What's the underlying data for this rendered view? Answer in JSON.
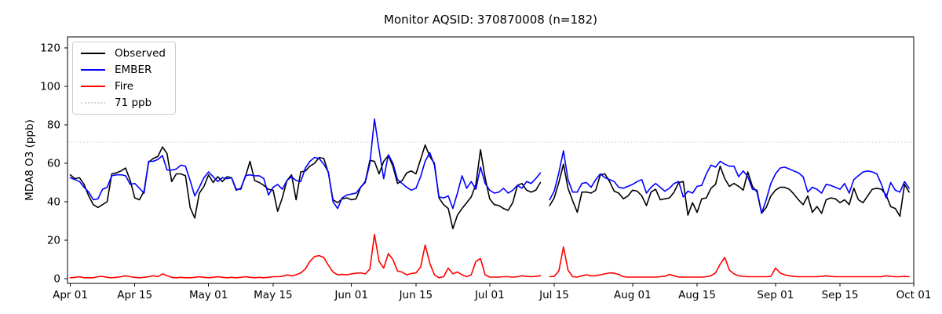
{
  "chart_data": {
    "type": "line",
    "title": "Monitor AQSID: 370870008 (n=182)",
    "ylabel": "MDA8 O3 (ppb)",
    "xlabel": "",
    "ylim": [
      -2.45,
      125.7
    ],
    "yticks": [
      0,
      20,
      40,
      60,
      80,
      100,
      120
    ],
    "x_axis": "daily values, day index 0 = Apr 01",
    "n_points": 183,
    "missing_day_index": 103,
    "grid": false,
    "legend_position": "upper-left",
    "xticks": [
      {
        "index": 0,
        "label": "Apr 01"
      },
      {
        "index": 14,
        "label": "Apr 15"
      },
      {
        "index": 30,
        "label": "May 01"
      },
      {
        "index": 44,
        "label": "May 15"
      },
      {
        "index": 61,
        "label": "Jun 01"
      },
      {
        "index": 75,
        "label": "Jun 15"
      },
      {
        "index": 91,
        "label": "Jul 01"
      },
      {
        "index": 105,
        "label": "Jul 15"
      },
      {
        "index": 122,
        "label": "Aug 01"
      },
      {
        "index": 136,
        "label": "Aug 15"
      },
      {
        "index": 153,
        "label": "Sep 01"
      },
      {
        "index": 167,
        "label": "Sep 15"
      },
      {
        "index": 183,
        "label": "Oct 01"
      }
    ],
    "threshold": {
      "value": 71,
      "label": "71 ppb",
      "color": "#d3d3d3",
      "style": "dotted"
    },
    "series": [
      {
        "name": "Observed",
        "color": "#000000",
        "style": "solid",
        "values": [
          54,
          52,
          52.5,
          49,
          43,
          38.5,
          37,
          38.5,
          40,
          54.5,
          55,
          56,
          57.5,
          51,
          42,
          41,
          45.5,
          60.5,
          62.5,
          63.5,
          68.5,
          65,
          50.5,
          54.5,
          54.5,
          53.5,
          37,
          31.5,
          44.5,
          48,
          54,
          50,
          53,
          50.5,
          53,
          52.5,
          46,
          47,
          53,
          61,
          51,
          50,
          48.5,
          46.5,
          46,
          35,
          42,
          51,
          54,
          41,
          55.5,
          56,
          58.5,
          60,
          63,
          62.5,
          55,
          41,
          39.5,
          41.5,
          42,
          41,
          41.5,
          47.5,
          50.5,
          61.5,
          61,
          54.5,
          61,
          64,
          58.5,
          49.5,
          51,
          55,
          56,
          54.5,
          62,
          69.5,
          63.5,
          60,
          42,
          38.5,
          36.5,
          26,
          33,
          36.5,
          39.5,
          42.5,
          49,
          67,
          52.5,
          41.5,
          38.5,
          38,
          36.5,
          35.5,
          39.5,
          48.5,
          49.5,
          46,
          45,
          46,
          50,
          null,
          38,
          42,
          50,
          59.5,
          47,
          40.5,
          34.5,
          45,
          45,
          44.5,
          46,
          54,
          54.5,
          50.5,
          45.5,
          44.5,
          41.5,
          43,
          46,
          45.5,
          43,
          38,
          45,
          46.5,
          41,
          41.5,
          42,
          45,
          50,
          50.5,
          33,
          39.5,
          34.5,
          41.5,
          42,
          47,
          49,
          58.5,
          52,
          48,
          49.5,
          48,
          46,
          55.5,
          48,
          45,
          34,
          37,
          43,
          46,
          47.5,
          47.5,
          46.5,
          44,
          41,
          38.5,
          43,
          34.5,
          37.5,
          34,
          41,
          42,
          41.5,
          39.5,
          41,
          38.5,
          47,
          41,
          39.5,
          43,
          46.5,
          47,
          46.5,
          43.5,
          37.5,
          36.5,
          32.5,
          49,
          45
        ]
      },
      {
        "name": "EMBER",
        "color": "#0000ff",
        "style": "solid",
        "values": [
          52.5,
          51.5,
          50.5,
          47.5,
          45,
          41,
          41.5,
          46.5,
          47.5,
          53.5,
          54,
          54,
          53.5,
          49,
          49.5,
          47,
          44.5,
          61,
          61,
          62,
          64,
          56.5,
          56.5,
          57,
          59,
          58.5,
          51,
          43,
          47.5,
          52.5,
          55.5,
          53,
          50.5,
          52.5,
          52,
          52.5,
          46.5,
          46.5,
          53.5,
          54,
          53.5,
          53.5,
          52,
          43.5,
          47.5,
          49,
          46.5,
          51,
          53,
          51,
          50.5,
          57.5,
          61,
          63,
          62.5,
          59.5,
          55.5,
          40,
          36.5,
          42,
          43.5,
          44,
          44.5,
          47.5,
          50,
          60,
          83,
          67,
          52,
          64.5,
          60,
          51.5,
          49.5,
          47.5,
          46,
          47,
          53,
          61,
          65.5,
          59,
          42.5,
          42,
          43,
          36.5,
          44.5,
          53.5,
          47,
          50.5,
          46.5,
          58,
          49.5,
          46,
          44.5,
          45,
          47,
          44.5,
          46,
          48.5,
          47,
          50.5,
          49.5,
          52,
          55,
          null,
          41,
          45.5,
          55,
          66.5,
          51.5,
          45,
          45,
          49.5,
          50,
          47.5,
          51.5,
          54.5,
          52.5,
          51.5,
          50.5,
          47.5,
          47,
          48,
          49,
          50.5,
          51.5,
          44.5,
          47.5,
          49.5,
          47.5,
          45.5,
          47,
          49.5,
          50.5,
          42.5,
          45.5,
          44.5,
          48,
          48.5,
          54.5,
          59,
          58,
          61,
          59.5,
          58.5,
          58.5,
          53,
          56,
          53,
          46.5,
          46,
          34,
          41,
          49.5,
          54.5,
          57.5,
          58,
          57,
          56,
          55,
          53,
          45,
          47.5,
          46.5,
          44.5,
          49,
          48.5,
          47.5,
          46.5,
          49.5,
          44.5,
          51.5,
          53.5,
          55.5,
          56,
          55.5,
          54.5,
          49,
          42,
          50,
          46,
          45,
          50.5,
          47
        ]
      },
      {
        "name": "Fire",
        "color": "#ff0000",
        "style": "solid",
        "values": [
          0.5,
          0.7,
          1,
          0.5,
          0.5,
          0.5,
          1,
          1.2,
          0.7,
          0.5,
          0.7,
          1,
          1.5,
          1,
          0.7,
          0.5,
          0.7,
          1,
          1.5,
          1,
          2.5,
          1.5,
          0.7,
          0.5,
          0.7,
          0.5,
          0.5,
          0.7,
          1,
          0.7,
          0.5,
          0.7,
          1,
          0.7,
          0.5,
          0.7,
          0.5,
          0.7,
          1,
          0.7,
          0.5,
          0.7,
          0.5,
          0.7,
          1,
          1,
          1.2,
          2,
          1.5,
          2,
          3,
          5,
          9,
          11.5,
          12,
          11,
          7,
          3.5,
          2,
          2.2,
          2,
          2.5,
          2.8,
          3,
          2.5,
          5,
          23,
          9,
          5.5,
          13,
          10,
          4,
          3.4,
          2,
          2.7,
          3,
          6,
          17.5,
          8,
          2,
          0.5,
          1,
          5.5,
          2.5,
          3.5,
          2,
          1,
          2,
          9,
          10.5,
          2,
          0.8,
          0.8,
          0.8,
          1,
          1,
          0.8,
          1,
          1.5,
          1.2,
          1,
          1.2,
          1.5,
          null,
          1,
          1.2,
          4,
          16.5,
          4.5,
          1,
          0.8,
          1.5,
          2,
          1.5,
          1.5,
          2,
          2.5,
          3,
          2.8,
          2.2,
          1,
          0.8,
          0.8,
          0.8,
          0.8,
          0.8,
          0.8,
          0.8,
          1,
          1.2,
          2.2,
          1.5,
          0.8,
          0.8,
          0.8,
          0.8,
          0.8,
          0.8,
          1,
          1.5,
          3,
          7.5,
          11,
          4.5,
          2.5,
          1.5,
          1.2,
          1,
          1,
          1,
          1,
          1,
          1.2,
          5.5,
          3,
          2,
          1.5,
          1.2,
          1,
          1,
          1,
          1,
          1,
          1.2,
          1.5,
          1.2,
          1,
          1,
          1,
          1,
          1,
          1,
          1,
          1,
          1,
          1,
          1,
          1.5,
          1.2,
          1,
          1,
          1.2,
          1
        ]
      }
    ]
  }
}
